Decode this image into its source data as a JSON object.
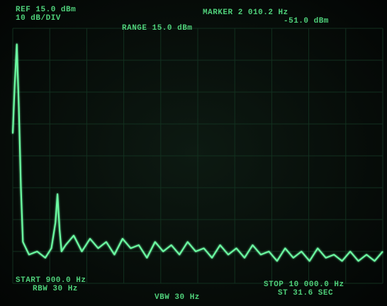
{
  "chart_data": {
    "type": "line",
    "annotations": [
      "REF 15.0 dBm",
      "10 dB/DIV",
      "RANGE 15.0 dBm",
      "MARKER 2 010.2 Hz",
      "-51.0 dBm",
      "START 900.0 Hz",
      "RBW 30 Hz",
      "VBW 30 Hz",
      "STOP 10 000.0 Hz",
      "ST 31.6 SEC"
    ],
    "xlim": [
      900,
      10000
    ],
    "ylim": [
      -65,
      15
    ],
    "color": "#6dffa4",
    "x": [
      900,
      950,
      1000,
      1050,
      1100,
      1150,
      1300,
      1500,
      1700,
      1850,
      1950,
      2000,
      2050,
      2100,
      2200,
      2400,
      2600,
      2800,
      3000,
      3200,
      3400,
      3600,
      3800,
      4000,
      4200,
      4400,
      4600,
      4800,
      5000,
      5200,
      5400,
      5600,
      5800,
      6000,
      6200,
      6400,
      6600,
      6800,
      7000,
      7200,
      7400,
      7600,
      7800,
      8000,
      8200,
      8400,
      8600,
      8800,
      9000,
      9200,
      9400,
      9600,
      9800,
      10000
    ],
    "values": [
      -18,
      -2,
      10,
      -10,
      -35,
      -52,
      -56,
      -55,
      -57,
      -54,
      -46,
      -37,
      -48,
      -55,
      -53,
      -50,
      -55,
      -51,
      -54,
      -52,
      -56,
      -51,
      -54,
      -53,
      -57,
      -52,
      -55,
      -53,
      -56,
      -52,
      -55,
      -54,
      -57,
      -53,
      -56,
      -54,
      -57,
      -53,
      -56,
      -55,
      -58,
      -54,
      -57,
      -55,
      -58,
      -54,
      -57,
      -56,
      -58,
      -55,
      -58,
      -56,
      -58,
      -55
    ]
  }
}
